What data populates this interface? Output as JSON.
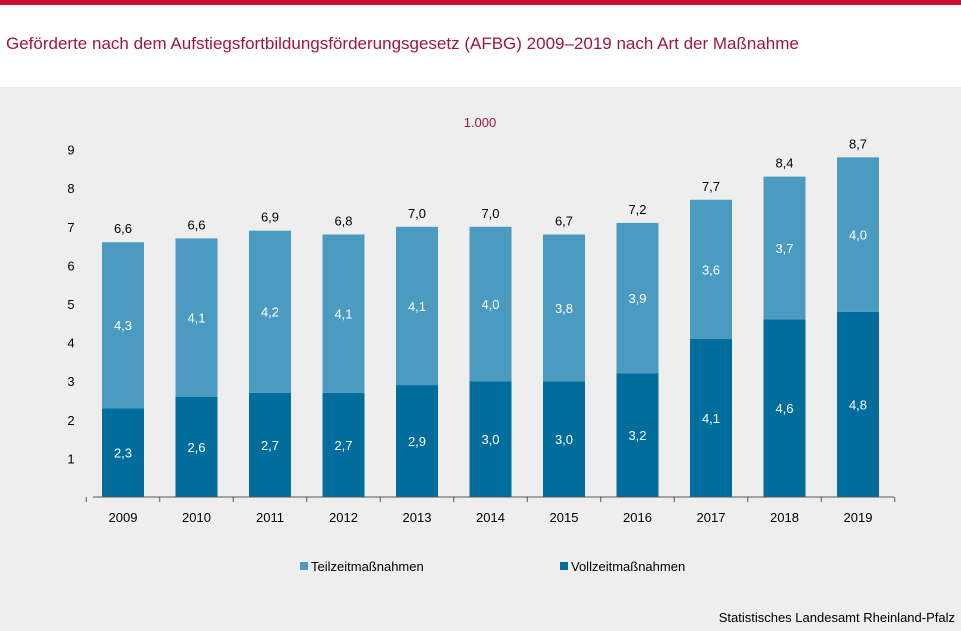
{
  "title": "Geförderte nach dem Aufstiegsfortbildungsförderungsgesetz (AFBG) 2009–2019 nach Art der Maßnahme",
  "source": "Statistisches Landesamt Rheinland-Pfalz",
  "colors": {
    "accent": "#c8102e",
    "title": "#a0153e",
    "panel": "#eeeeee",
    "teilzeit": "#4a9bbf",
    "vollzeit": "#006d9c"
  },
  "chart_data": {
    "type": "bar",
    "stacked": true,
    "unit_label": "1.000",
    "categories": [
      "2009",
      "2010",
      "2011",
      "2012",
      "2013",
      "2014",
      "2015",
      "2016",
      "2017",
      "2018",
      "2019"
    ],
    "series": [
      {
        "name": "Vollzeitmaßnahmen",
        "color": "#006d9c",
        "values": [
          2.3,
          2.6,
          2.7,
          2.7,
          2.9,
          3.0,
          3.0,
          3.2,
          4.1,
          4.6,
          4.8
        ],
        "labels": [
          "2,3",
          "2,6",
          "2,7",
          "2,7",
          "2,9",
          "3,0",
          "3,0",
          "3,2",
          "4,1",
          "4,6",
          "4,8"
        ]
      },
      {
        "name": "Teilzeitmaßnahmen",
        "color": "#4a9bbf",
        "values": [
          4.3,
          4.1,
          4.2,
          4.1,
          4.1,
          4.0,
          3.8,
          3.9,
          3.6,
          3.7,
          4.0
        ],
        "labels": [
          "4,3",
          "4,1",
          "4,2",
          "4,1",
          "4,1",
          "4,0",
          "3,8",
          "3,9",
          "3,6",
          "3,7",
          "4,0"
        ]
      }
    ],
    "totals": [
      6.6,
      6.6,
      6.9,
      6.8,
      7.0,
      7.0,
      6.7,
      7.2,
      7.7,
      8.4,
      8.7
    ],
    "total_labels": [
      "6,6",
      "6,6",
      "6,9",
      "6,8",
      "7,0",
      "7,0",
      "6,7",
      "7,2",
      "7,7",
      "8,4",
      "8,7"
    ],
    "ylim": [
      0,
      9
    ],
    "yticks": [
      1,
      2,
      3,
      4,
      5,
      6,
      7,
      8,
      9
    ],
    "grid": false,
    "legend": {
      "position": "bottom",
      "items": [
        {
          "label": "Teilzeitmaßnahmen",
          "color": "#4a9bbf"
        },
        {
          "label": "Vollzeitmaßnahmen",
          "color": "#006d9c"
        }
      ]
    }
  }
}
